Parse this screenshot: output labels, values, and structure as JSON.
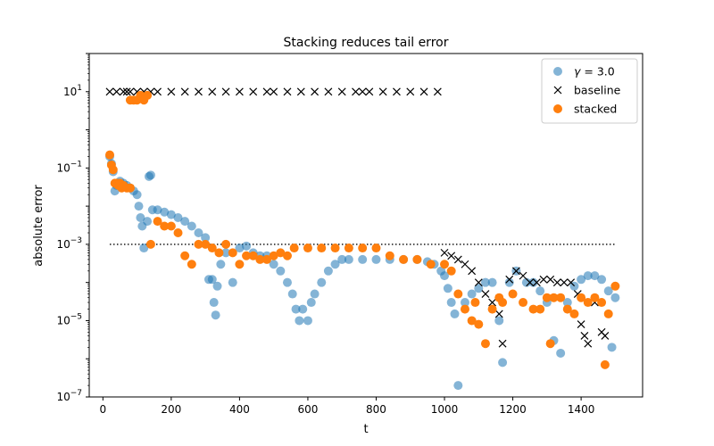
{
  "chart_data": {
    "type": "scatter",
    "title": "Stacking reduces tail error",
    "xlabel": "t",
    "ylabel": "absolute error",
    "xlim": [
      -40,
      1580
    ],
    "ylim_exp": [
      -7,
      2
    ],
    "yscale": "log",
    "x_ticks": [
      0,
      200,
      400,
      600,
      800,
      1000,
      1200,
      1400
    ],
    "y_ticks_exp": [
      -7,
      -5,
      -3,
      -1,
      1
    ],
    "legend_position": "upper-right",
    "legend": [
      {
        "label_prefix": "γ",
        "label_suffix": " = 3.0",
        "marker": "circle",
        "color": "#1f77b4",
        "opacity": 0.55
      },
      {
        "label": "baseline",
        "marker": "x",
        "color": "#000000"
      },
      {
        "label": "stacked",
        "marker": "circle",
        "color": "#ff7f0e",
        "opacity": 1.0
      }
    ],
    "reference_line": {
      "y": 0.001,
      "x_range": [
        20,
        1500
      ],
      "style": "dotted"
    },
    "series": [
      {
        "marker": "circle",
        "color": "#1f77b4",
        "opacity": 0.55,
        "points": [
          [
            20,
            0.2
          ],
          [
            25,
            0.13
          ],
          [
            30,
            0.08
          ],
          [
            35,
            0.025
          ],
          [
            40,
            0.035
          ],
          [
            45,
            0.04
          ],
          [
            50,
            0.045
          ],
          [
            60,
            0.04
          ],
          [
            70,
            0.035
          ],
          [
            80,
            0.03
          ],
          [
            90,
            0.025
          ],
          [
            100,
            0.02
          ],
          [
            105,
            0.01
          ],
          [
            110,
            0.005
          ],
          [
            115,
            0.003
          ],
          [
            120,
            0.0008
          ],
          [
            130,
            0.004
          ],
          [
            135,
            0.06
          ],
          [
            140,
            0.065
          ],
          [
            145,
            0.008
          ],
          [
            160,
            0.008
          ],
          [
            180,
            0.007
          ],
          [
            200,
            0.006
          ],
          [
            220,
            0.005
          ],
          [
            240,
            0.004
          ],
          [
            260,
            0.003
          ],
          [
            280,
            0.002
          ],
          [
            300,
            0.0015
          ],
          [
            310,
            0.00012
          ],
          [
            320,
            0.00012
          ],
          [
            325,
            3e-05
          ],
          [
            330,
            1.4e-05
          ],
          [
            335,
            8e-05
          ],
          [
            345,
            0.0003
          ],
          [
            360,
            0.0006
          ],
          [
            380,
            0.0001
          ],
          [
            400,
            0.0008
          ],
          [
            420,
            0.0009
          ],
          [
            440,
            0.0006
          ],
          [
            460,
            0.0005
          ],
          [
            480,
            0.0005
          ],
          [
            500,
            0.0003
          ],
          [
            520,
            0.0002
          ],
          [
            540,
            0.0001
          ],
          [
            555,
            5e-05
          ],
          [
            565,
            2e-05
          ],
          [
            575,
            1e-05
          ],
          [
            585,
            2e-05
          ],
          [
            600,
            1e-05
          ],
          [
            610,
            3e-05
          ],
          [
            620,
            5e-05
          ],
          [
            640,
            0.0001
          ],
          [
            660,
            0.0002
          ],
          [
            680,
            0.0003
          ],
          [
            700,
            0.0004
          ],
          [
            720,
            0.0004
          ],
          [
            760,
            0.0004
          ],
          [
            800,
            0.0004
          ],
          [
            840,
            0.0004
          ],
          [
            880,
            0.0004
          ],
          [
            920,
            0.0004
          ],
          [
            950,
            0.00035
          ],
          [
            970,
            0.0003
          ],
          [
            990,
            0.0002
          ],
          [
            1000,
            0.00015
          ],
          [
            1010,
            7e-05
          ],
          [
            1020,
            3e-05
          ],
          [
            1030,
            1.5e-05
          ],
          [
            1040,
            2e-07
          ],
          [
            1060,
            3e-05
          ],
          [
            1080,
            5e-05
          ],
          [
            1100,
            7e-05
          ],
          [
            1120,
            0.0001
          ],
          [
            1140,
            0.0001
          ],
          [
            1160,
            1e-05
          ],
          [
            1170,
            8e-07
          ],
          [
            1190,
            0.0001
          ],
          [
            1210,
            0.0002
          ],
          [
            1240,
            0.0001
          ],
          [
            1260,
            0.0001
          ],
          [
            1280,
            6e-05
          ],
          [
            1300,
            3e-05
          ],
          [
            1320,
            3e-06
          ],
          [
            1340,
            1.4e-06
          ],
          [
            1360,
            3e-05
          ],
          [
            1380,
            8e-05
          ],
          [
            1400,
            0.00012
          ],
          [
            1420,
            0.00015
          ],
          [
            1440,
            0.00015
          ],
          [
            1460,
            0.00012
          ],
          [
            1480,
            6e-05
          ],
          [
            1490,
            2e-06
          ],
          [
            1500,
            4e-05
          ]
        ]
      },
      {
        "marker": "x",
        "color": "#000000",
        "points": [
          [
            20,
            10
          ],
          [
            40,
            10
          ],
          [
            60,
            10
          ],
          [
            70,
            10
          ],
          [
            80,
            10
          ],
          [
            100,
            10
          ],
          [
            120,
            10
          ],
          [
            140,
            10
          ],
          [
            160,
            10
          ],
          [
            200,
            10
          ],
          [
            240,
            10
          ],
          [
            280,
            10
          ],
          [
            320,
            10
          ],
          [
            360,
            10
          ],
          [
            400,
            10
          ],
          [
            440,
            10
          ],
          [
            480,
            10
          ],
          [
            500,
            10
          ],
          [
            540,
            10
          ],
          [
            580,
            10
          ],
          [
            620,
            10
          ],
          [
            660,
            10
          ],
          [
            700,
            10
          ],
          [
            740,
            10
          ],
          [
            760,
            10
          ],
          [
            780,
            10
          ],
          [
            820,
            10
          ],
          [
            860,
            10
          ],
          [
            900,
            10
          ],
          [
            940,
            10
          ],
          [
            980,
            10
          ],
          [
            1000,
            0.0006
          ],
          [
            1020,
            0.0005
          ],
          [
            1040,
            0.0004
          ],
          [
            1060,
            0.0003
          ],
          [
            1080,
            0.0002
          ],
          [
            1100,
            0.0001
          ],
          [
            1120,
            5e-05
          ],
          [
            1140,
            3e-05
          ],
          [
            1160,
            1.5e-05
          ],
          [
            1170,
            2.5e-06
          ],
          [
            1190,
            0.00012
          ],
          [
            1210,
            0.0002
          ],
          [
            1230,
            0.00015
          ],
          [
            1250,
            0.0001
          ],
          [
            1270,
            0.0001
          ],
          [
            1290,
            0.00012
          ],
          [
            1310,
            0.00012
          ],
          [
            1330,
            0.0001
          ],
          [
            1350,
            0.0001
          ],
          [
            1370,
            0.0001
          ],
          [
            1390,
            5e-05
          ],
          [
            1400,
            8e-06
          ],
          [
            1410,
            4e-06
          ],
          [
            1420,
            2.5e-06
          ],
          [
            1440,
            3e-05
          ],
          [
            1460,
            5e-06
          ],
          [
            1470,
            4e-06
          ]
        ]
      },
      {
        "marker": "circle",
        "color": "#ff7f0e",
        "opacity": 1.0,
        "points": [
          [
            20,
            0.22
          ],
          [
            25,
            0.12
          ],
          [
            30,
            0.09
          ],
          [
            35,
            0.04
          ],
          [
            40,
            0.04
          ],
          [
            45,
            0.035
          ],
          [
            50,
            0.04
          ],
          [
            55,
            0.03
          ],
          [
            60,
            0.035
          ],
          [
            70,
            0.03
          ],
          [
            80,
            0.03
          ],
          [
            80,
            6
          ],
          [
            90,
            6
          ],
          [
            100,
            6
          ],
          [
            110,
            8
          ],
          [
            120,
            6
          ],
          [
            130,
            8
          ],
          [
            140,
            0.001
          ],
          [
            160,
            0.004
          ],
          [
            180,
            0.003
          ],
          [
            200,
            0.003
          ],
          [
            220,
            0.002
          ],
          [
            240,
            0.0005
          ],
          [
            260,
            0.0003
          ],
          [
            280,
            0.001
          ],
          [
            300,
            0.001
          ],
          [
            320,
            0.0008
          ],
          [
            340,
            0.0006
          ],
          [
            360,
            0.001
          ],
          [
            380,
            0.0006
          ],
          [
            400,
            0.0003
          ],
          [
            420,
            0.0005
          ],
          [
            440,
            0.0005
          ],
          [
            460,
            0.0004
          ],
          [
            480,
            0.0004
          ],
          [
            500,
            0.0005
          ],
          [
            520,
            0.0006
          ],
          [
            540,
            0.0005
          ],
          [
            560,
            0.0008
          ],
          [
            600,
            0.0008
          ],
          [
            640,
            0.0008
          ],
          [
            680,
            0.0008
          ],
          [
            720,
            0.0008
          ],
          [
            760,
            0.0008
          ],
          [
            800,
            0.0008
          ],
          [
            840,
            0.0005
          ],
          [
            880,
            0.0004
          ],
          [
            920,
            0.0004
          ],
          [
            960,
            0.0003
          ],
          [
            1000,
            0.0003
          ],
          [
            1020,
            0.0002
          ],
          [
            1040,
            5e-05
          ],
          [
            1060,
            2e-05
          ],
          [
            1080,
            1e-05
          ],
          [
            1090,
            3e-05
          ],
          [
            1100,
            8e-06
          ],
          [
            1120,
            2.5e-06
          ],
          [
            1140,
            2e-05
          ],
          [
            1160,
            4e-05
          ],
          [
            1170,
            3e-05
          ],
          [
            1200,
            5e-05
          ],
          [
            1230,
            3e-05
          ],
          [
            1260,
            2e-05
          ],
          [
            1280,
            2e-05
          ],
          [
            1300,
            4e-05
          ],
          [
            1310,
            2.5e-06
          ],
          [
            1320,
            4e-05
          ],
          [
            1340,
            4e-05
          ],
          [
            1360,
            2e-05
          ],
          [
            1380,
            1.5e-05
          ],
          [
            1400,
            4e-05
          ],
          [
            1420,
            3e-05
          ],
          [
            1440,
            4e-05
          ],
          [
            1460,
            3e-05
          ],
          [
            1470,
            7e-07
          ],
          [
            1480,
            1.5e-05
          ],
          [
            1500,
            8e-05
          ]
        ]
      }
    ]
  }
}
